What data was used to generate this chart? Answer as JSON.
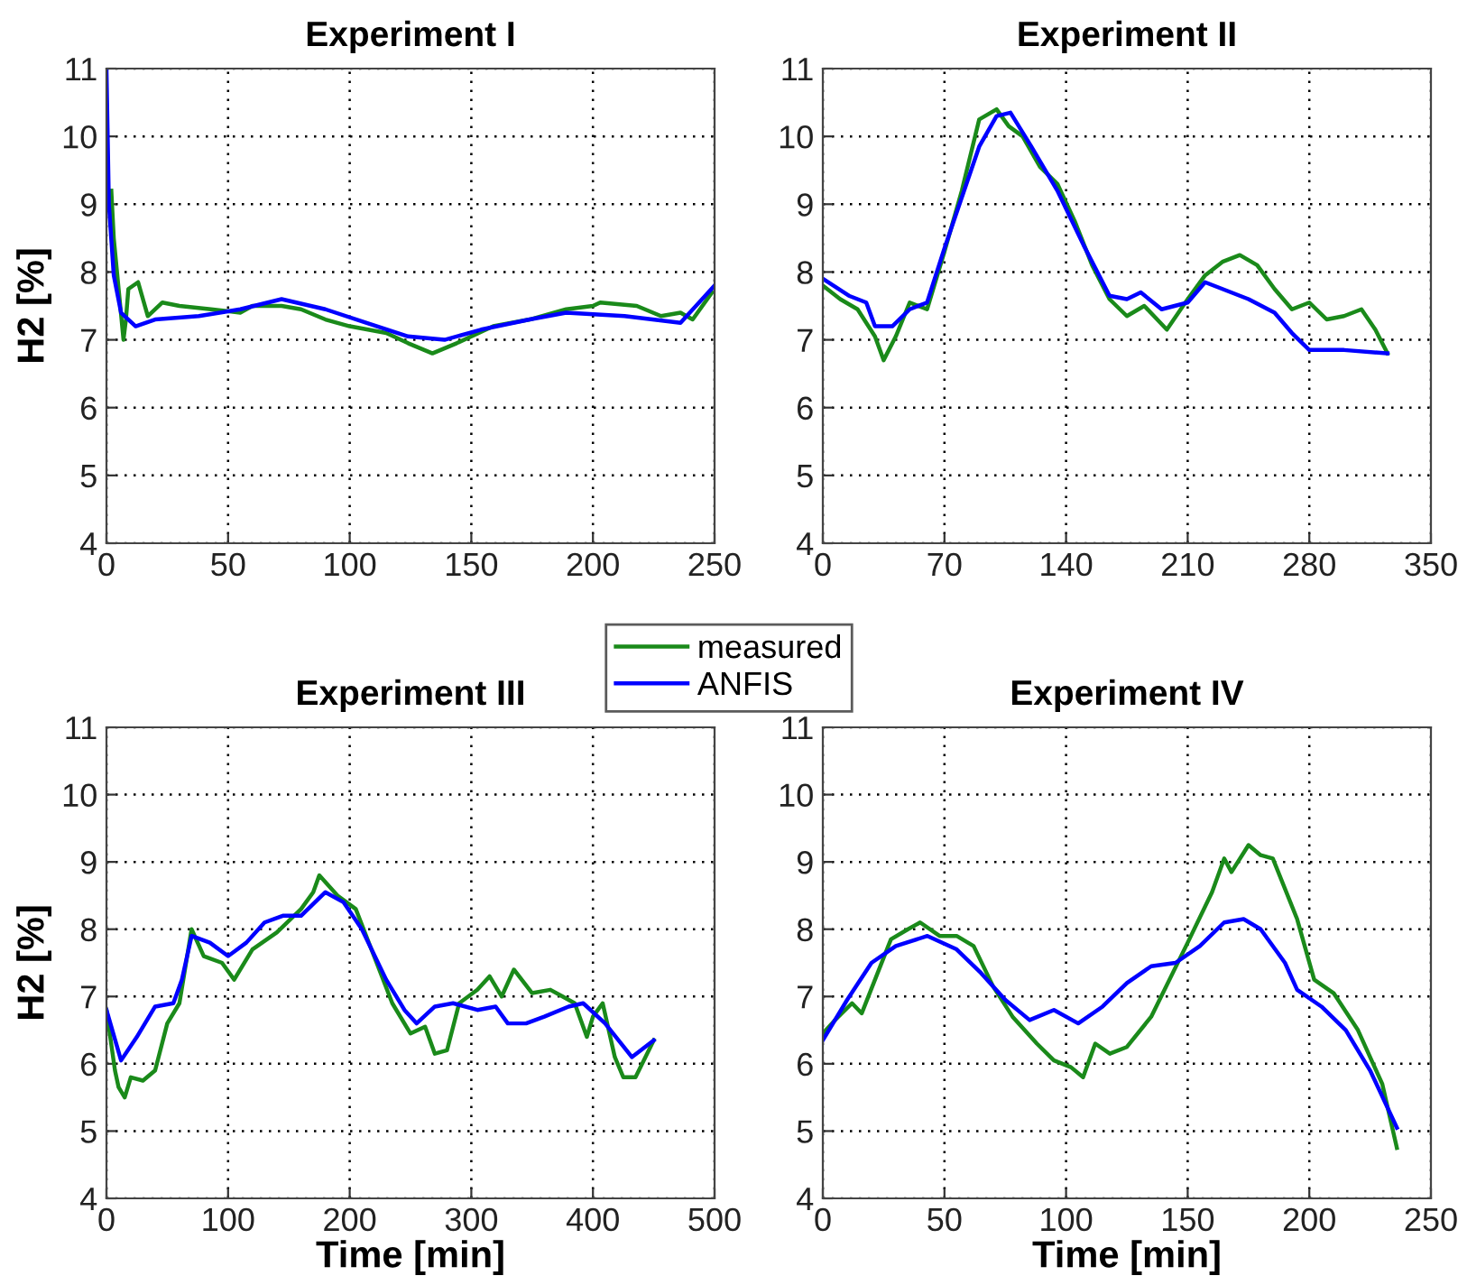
{
  "chart_data": [
    {
      "type": "line",
      "title": "Experiment I",
      "ylabel": "H2 [%]",
      "xlim": [
        0,
        250
      ],
      "xticks": [
        0,
        50,
        100,
        150,
        200,
        250
      ],
      "ylim": [
        4,
        11
      ],
      "yticks": [
        4,
        5,
        6,
        7,
        8,
        9,
        10,
        11
      ],
      "grid": true,
      "line_style": "solid",
      "legend": "bottom right",
      "series": [
        {
          "name": "measured",
          "color": "#1a8a1a",
          "x": [
            2,
            3,
            7,
            8,
            9,
            13,
            17,
            23,
            30,
            43,
            55,
            60,
            72,
            80,
            90,
            100,
            115,
            124,
            134,
            144,
            159,
            174,
            189,
            200,
            203,
            218,
            228,
            236,
            241,
            249
          ],
          "values": [
            9.2,
            8.5,
            7.0,
            7.3,
            7.75,
            7.85,
            7.35,
            7.55,
            7.5,
            7.45,
            7.4,
            7.5,
            7.5,
            7.45,
            7.3,
            7.2,
            7.1,
            6.95,
            6.8,
            6.95,
            7.2,
            7.3,
            7.45,
            7.5,
            7.55,
            7.5,
            7.35,
            7.4,
            7.3,
            7.7
          ]
        },
        {
          "name": "ANFIS",
          "color": "#0000ff",
          "x": [
            0,
            1,
            3,
            6,
            12,
            20,
            38,
            55,
            72,
            90,
            107,
            124,
            139,
            154,
            174,
            189,
            213,
            236,
            250
          ],
          "values": [
            11,
            9.0,
            7.95,
            7.4,
            7.2,
            7.3,
            7.35,
            7.45,
            7.6,
            7.45,
            7.25,
            7.05,
            7.0,
            7.15,
            7.3,
            7.4,
            7.35,
            7.25,
            7.8
          ]
        }
      ]
    },
    {
      "type": "line",
      "title": "Experiment II",
      "xlim": [
        0,
        350
      ],
      "xticks": [
        0,
        70,
        140,
        210,
        280,
        350
      ],
      "ylim": [
        4,
        11
      ],
      "yticks": [
        4,
        5,
        6,
        7,
        8,
        9,
        10,
        11
      ],
      "grid": true,
      "line_style": "solid",
      "series": [
        {
          "color": "#1a8a1a",
          "x": [
            0,
            10,
            20,
            30,
            35,
            42,
            50,
            60,
            70,
            80,
            90,
            100,
            107,
            115,
            125,
            135,
            145,
            155,
            165,
            175,
            185,
            198,
            210,
            220,
            230,
            240,
            250,
            260,
            270,
            280,
            290,
            300,
            310,
            318,
            325
          ],
          "values": [
            7.8,
            7.6,
            7.45,
            7.05,
            6.7,
            7.05,
            7.55,
            7.45,
            8.3,
            9.2,
            10.25,
            10.4,
            10.15,
            10.0,
            9.55,
            9.3,
            8.75,
            8.1,
            7.6,
            7.35,
            7.5,
            7.15,
            7.6,
            7.95,
            8.15,
            8.25,
            8.1,
            7.75,
            7.45,
            7.55,
            7.3,
            7.35,
            7.45,
            7.15,
            6.8
          ]
        },
        {
          "color": "#0000ff",
          "x": [
            0,
            15,
            25,
            30,
            40,
            50,
            60,
            70,
            80,
            90,
            100,
            108,
            120,
            135,
            150,
            165,
            175,
            183,
            195,
            210,
            220,
            230,
            245,
            260,
            270,
            280,
            300,
            325
          ],
          "values": [
            7.9,
            7.65,
            7.55,
            7.2,
            7.2,
            7.45,
            7.55,
            8.35,
            9.1,
            9.85,
            10.3,
            10.35,
            9.85,
            9.2,
            8.4,
            7.65,
            7.6,
            7.7,
            7.45,
            7.55,
            7.85,
            7.75,
            7.6,
            7.4,
            7.1,
            6.85,
            6.85,
            6.8
          ]
        }
      ]
    },
    {
      "type": "line",
      "title": "Experiment III",
      "xlabel": "Time [min]",
      "ylabel": "H2 [%]",
      "xlim": [
        0,
        500
      ],
      "xticks": [
        0,
        100,
        200,
        300,
        400,
        500
      ],
      "ylim": [
        4,
        11
      ],
      "yticks": [
        4,
        5,
        6,
        7,
        8,
        9,
        10,
        11
      ],
      "grid": true,
      "line_style": "solid",
      "series": [
        {
          "color": "#1a8a1a",
          "x": [
            0,
            7,
            10,
            15,
            20,
            30,
            40,
            50,
            60,
            70,
            80,
            95,
            105,
            120,
            140,
            160,
            170,
            175,
            190,
            205,
            220,
            235,
            250,
            262,
            270,
            280,
            290,
            305,
            315,
            325,
            335,
            350,
            365,
            375,
            385,
            395,
            400,
            408,
            418,
            425,
            435,
            450
          ],
          "values": [
            6.8,
            5.9,
            5.65,
            5.5,
            5.8,
            5.75,
            5.9,
            6.6,
            6.9,
            8.0,
            7.6,
            7.5,
            7.25,
            7.7,
            7.95,
            8.3,
            8.55,
            8.8,
            8.5,
            8.3,
            7.6,
            6.9,
            6.45,
            6.55,
            6.15,
            6.2,
            6.9,
            7.1,
            7.3,
            7.0,
            7.4,
            7.05,
            7.1,
            7.0,
            6.9,
            6.4,
            6.7,
            6.9,
            6.1,
            5.8,
            5.8,
            6.35
          ]
        },
        {
          "color": "#0000ff",
          "x": [
            0,
            12,
            25,
            40,
            55,
            62,
            70,
            85,
            100,
            115,
            130,
            145,
            160,
            180,
            195,
            210,
            230,
            245,
            255,
            270,
            285,
            305,
            320,
            330,
            345,
            360,
            380,
            392,
            410,
            432,
            450
          ],
          "values": [
            6.8,
            6.05,
            6.4,
            6.85,
            6.9,
            7.25,
            7.9,
            7.8,
            7.6,
            7.8,
            8.1,
            8.2,
            8.2,
            8.55,
            8.4,
            8.0,
            7.25,
            6.8,
            6.6,
            6.85,
            6.9,
            6.8,
            6.85,
            6.6,
            6.6,
            6.7,
            6.85,
            6.9,
            6.6,
            6.1,
            6.35
          ]
        }
      ]
    },
    {
      "type": "line",
      "title": "Experiment IV",
      "xlabel": "Time [min]",
      "xlim": [
        0,
        250
      ],
      "xticks": [
        0,
        50,
        100,
        150,
        200,
        250
      ],
      "ylim": [
        4,
        11
      ],
      "yticks": [
        4,
        5,
        6,
        7,
        8,
        9,
        10,
        11
      ],
      "grid": true,
      "line_style": "solid",
      "series": [
        {
          "color": "#1a8a1a",
          "x": [
            0,
            5,
            12,
            16,
            22,
            28,
            35,
            40,
            48,
            55,
            62,
            70,
            78,
            88,
            95,
            102,
            107,
            112,
            118,
            125,
            135,
            150,
            160,
            165,
            168,
            175,
            180,
            185,
            195,
            202,
            210,
            220,
            230,
            236
          ],
          "values": [
            6.45,
            6.65,
            6.9,
            6.75,
            7.3,
            7.85,
            8.0,
            8.1,
            7.9,
            7.9,
            7.75,
            7.15,
            6.7,
            6.3,
            6.05,
            5.95,
            5.8,
            6.3,
            6.15,
            6.25,
            6.7,
            7.8,
            8.55,
            9.05,
            8.85,
            9.25,
            9.1,
            9.05,
            8.15,
            7.25,
            7.05,
            6.5,
            5.7,
            4.75
          ]
        },
        {
          "color": "#0000ff",
          "x": [
            0,
            10,
            20,
            30,
            43,
            55,
            65,
            75,
            85,
            95,
            105,
            115,
            125,
            135,
            145,
            155,
            165,
            173,
            180,
            190,
            195,
            205,
            215,
            225,
            236
          ],
          "values": [
            6.35,
            6.95,
            7.5,
            7.75,
            7.9,
            7.7,
            7.35,
            6.95,
            6.65,
            6.8,
            6.6,
            6.85,
            7.2,
            7.45,
            7.5,
            7.75,
            8.1,
            8.15,
            8.0,
            7.5,
            7.1,
            6.85,
            6.5,
            5.9,
            5.05
          ]
        }
      ]
    }
  ]
}
